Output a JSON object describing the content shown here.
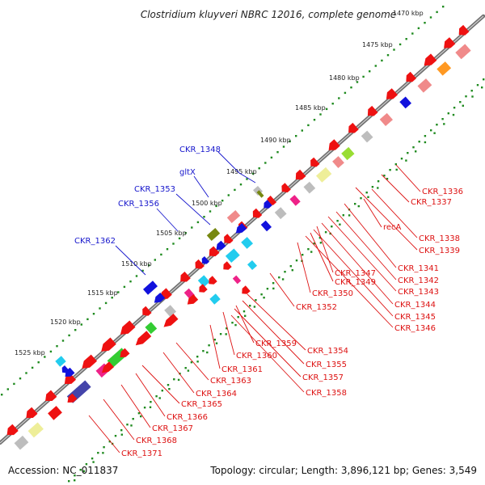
{
  "title": "Clostridium kluyveri NBRC 12016, complete genome",
  "footer": {
    "accession": "Accession: NC_011837",
    "topology": "Topology: circular; Length: 3,896,121 bp; Genes: 3,549"
  },
  "colors": {
    "upper_label": "#1515cc",
    "lower_label": "#dd1111",
    "tick": "#1f8a1f",
    "backbone": "#707070"
  },
  "scale_ticks": [
    "1470 kbp",
    "1475 kbp",
    "1480 kbp",
    "1485 kbp",
    "1490 kbp",
    "1495 kbp",
    "1500 kbp",
    "1505 kbp",
    "1510 kbp",
    "1515 kbp",
    "1520 kbp",
    "1525 kbp"
  ],
  "upper_labels": [
    "CKR_1348",
    "gltX",
    "CKR_1353",
    "CKR_1356",
    "CKR_1362"
  ],
  "lower_labels": [
    "CKR_1336",
    "CKR_1337",
    "recA",
    "CKR_1338",
    "CKR_1339",
    "CKR_1341",
    "CKR_1347",
    "CKR_1349",
    "CKR_1342",
    "CKR_1343",
    "CKR_1350",
    "CKR_1344",
    "CKR_1345",
    "CKR_1352",
    "CKR_1346",
    "CKR_1354",
    "CKR_1359",
    "CKR_1355",
    "CKR_1360",
    "CKR_1357",
    "CKR_1361",
    "CKR_1363",
    "CKR_1358",
    "CKR_1364",
    "CKR_1365",
    "CKR_1366",
    "CKR_1367",
    "CKR_1368",
    "CKR_1371"
  ]
}
